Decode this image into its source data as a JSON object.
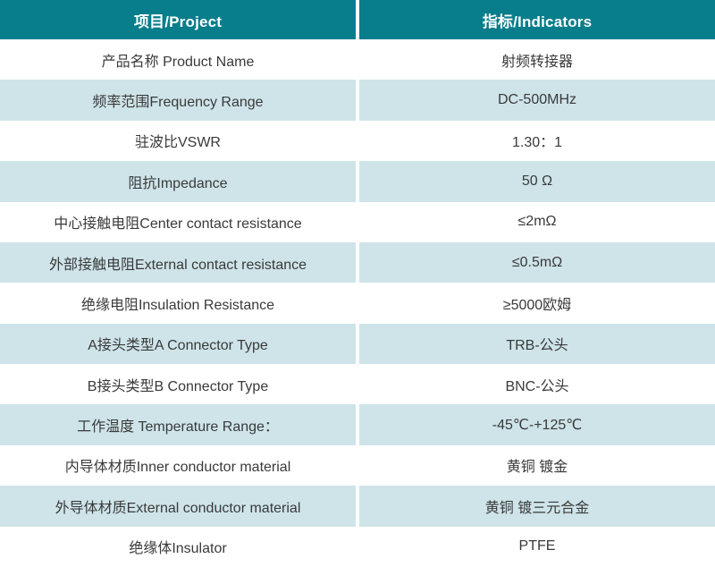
{
  "table": {
    "title": "product-specification-table",
    "header": {
      "project": "项目/Project",
      "indicators": "指标/Indicators"
    },
    "rows": [
      {
        "project": "产品名称 Product Name",
        "indicator": "射频转接器"
      },
      {
        "project": "频率范围Frequency Range",
        "indicator": "DC-500MHz"
      },
      {
        "project": "驻波比VSWR",
        "indicator": "1.30：1"
      },
      {
        "project": "阻抗Impedance",
        "indicator": "50 Ω"
      },
      {
        "project": "中心接触电阻Center contact resistance",
        "indicator": "≤2mΩ"
      },
      {
        "project": "外部接触电阻External contact resistance",
        "indicator": "≤0.5mΩ"
      },
      {
        "project": "绝缘电阻Insulation Resistance",
        "indicator": "≥5000欧姆"
      },
      {
        "project": "A接头类型A Connector Type",
        "indicator": "TRB-公头"
      },
      {
        "project": "B接头类型B Connector Type",
        "indicator": "BNC-公头"
      },
      {
        "project": "工作温度 Temperature Range：",
        "indicator": "-45℃-+125℃"
      },
      {
        "project": "内导体材质Inner conductor material",
        "indicator": "黄铜 镀金"
      },
      {
        "project": "外导体材质External conductor material",
        "indicator": "黄铜 镀三元合金"
      },
      {
        "project": "绝缘体Insulator",
        "indicator": "PTFE"
      }
    ],
    "colors": {
      "header_bg": "#087e8c",
      "header_text": "#ffffff",
      "row_bg": "#ffffff",
      "row_alt_bg": "#cee4e9",
      "body_text": "#3a3a3a",
      "divider": "#ffffff"
    }
  }
}
